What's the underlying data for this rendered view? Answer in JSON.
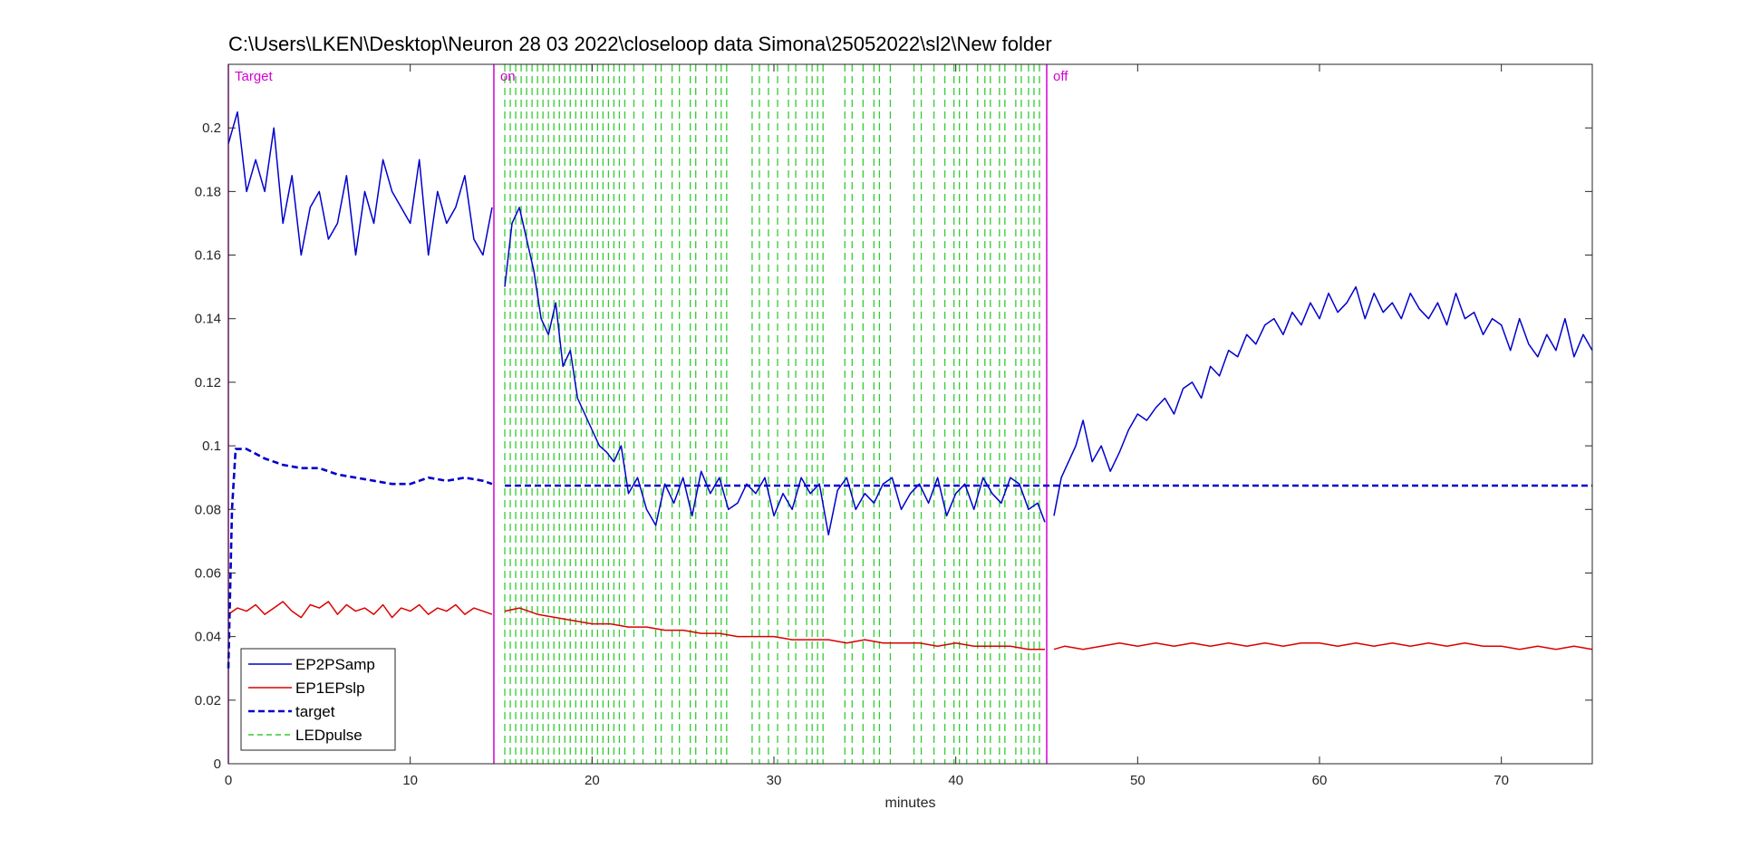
{
  "chart_data": {
    "type": "line",
    "title": "C:\\Users\\LKEN\\Desktop\\Neuron 28 03 2022\\closeloop data Simona\\25052022\\sl2\\New folder",
    "xlabel": "minutes",
    "ylabel": "",
    "xlim": [
      0,
      75
    ],
    "ylim": [
      0,
      0.22
    ],
    "xticks": [
      0,
      10,
      20,
      30,
      40,
      50,
      60,
      70
    ],
    "yticks": [
      0,
      0.02,
      0.04,
      0.06,
      0.08,
      0.1,
      0.12,
      0.14,
      0.16,
      0.18,
      0.2
    ],
    "xtick_labels": [
      "0",
      "10",
      "20",
      "30",
      "40",
      "50",
      "60",
      "70"
    ],
    "ytick_labels": [
      "0",
      "0.02",
      "0.04",
      "0.06",
      "0.08",
      "0.1",
      "0.12",
      "0.14",
      "0.16",
      "0.18",
      "0.2"
    ],
    "grid": false,
    "legend_position": "bottom-left",
    "regions": [
      {
        "label": "Target",
        "x": 0,
        "color": "#d400d4"
      },
      {
        "label": "on",
        "x": 14.6,
        "color": "#d400d4"
      },
      {
        "label": "off",
        "x": 45,
        "color": "#d400d4"
      }
    ],
    "series": [
      {
        "name": "EP2PSamp",
        "color": "#0000cc",
        "style": "solid",
        "segments": [
          {
            "x": [
              0,
              0.5,
              1,
              1.5,
              2,
              2.5,
              3,
              3.5,
              4,
              4.5,
              5,
              5.5,
              6,
              6.5,
              7,
              7.5,
              8,
              8.5,
              9,
              9.5,
              10,
              10.5,
              11,
              11.5,
              12,
              12.5,
              13,
              13.5,
              14,
              14.5
            ],
            "y": [
              0.195,
              0.205,
              0.18,
              0.19,
              0.18,
              0.2,
              0.17,
              0.185,
              0.16,
              0.175,
              0.18,
              0.165,
              0.17,
              0.185,
              0.16,
              0.18,
              0.17,
              0.19,
              0.18,
              0.175,
              0.17,
              0.19,
              0.16,
              0.18,
              0.17,
              0.175,
              0.185,
              0.165,
              0.16,
              0.175
            ]
          },
          {
            "x": [
              15.2,
              15.6,
              16,
              16.4,
              16.8,
              17.2,
              17.6,
              18,
              18.4,
              18.8,
              19.2,
              19.6,
              20,
              20.4,
              20.8,
              21.2,
              21.6,
              22,
              22.5,
              23,
              23.5,
              24,
              24.5,
              25,
              25.5,
              26,
              26.5,
              27,
              27.5,
              28,
              28.5,
              29,
              29.5,
              30,
              30.5,
              31,
              31.5,
              32,
              32.5,
              33,
              33.5,
              34,
              34.5,
              35,
              35.5,
              36,
              36.5,
              37,
              37.5,
              38,
              38.5,
              39,
              39.5,
              40,
              40.5,
              41,
              41.5,
              42,
              42.5,
              43,
              43.5,
              44,
              44.5,
              44.9
            ],
            "y": [
              0.15,
              0.17,
              0.175,
              0.165,
              0.155,
              0.14,
              0.135,
              0.145,
              0.125,
              0.13,
              0.115,
              0.11,
              0.105,
              0.1,
              0.098,
              0.095,
              0.1,
              0.085,
              0.09,
              0.08,
              0.075,
              0.088,
              0.082,
              0.09,
              0.078,
              0.092,
              0.085,
              0.09,
              0.08,
              0.082,
              0.088,
              0.085,
              0.09,
              0.078,
              0.085,
              0.08,
              0.09,
              0.085,
              0.088,
              0.072,
              0.086,
              0.09,
              0.08,
              0.085,
              0.082,
              0.088,
              0.09,
              0.08,
              0.085,
              0.088,
              0.082,
              0.09,
              0.078,
              0.085,
              0.088,
              0.08,
              0.09,
              0.085,
              0.082,
              0.09,
              0.088,
              0.08,
              0.082,
              0.076
            ]
          },
          {
            "x": [
              45.4,
              45.8,
              46.2,
              46.6,
              47,
              47.5,
              48,
              48.5,
              49,
              49.5,
              50,
              50.5,
              51,
              51.5,
              52,
              52.5,
              53,
              53.5,
              54,
              54.5,
              55,
              55.5,
              56,
              56.5,
              57,
              57.5,
              58,
              58.5,
              59,
              59.5,
              60,
              60.5,
              61,
              61.5,
              62,
              62.5,
              63,
              63.5,
              64,
              64.5,
              65,
              65.5,
              66,
              66.5,
              67,
              67.5,
              68,
              68.5,
              69,
              69.5,
              70,
              70.5,
              71,
              71.5,
              72,
              72.5,
              73,
              73.5,
              74,
              74.5,
              75
            ],
            "y": [
              0.078,
              0.09,
              0.095,
              0.1,
              0.108,
              0.095,
              0.1,
              0.092,
              0.098,
              0.105,
              0.11,
              0.108,
              0.112,
              0.115,
              0.11,
              0.118,
              0.12,
              0.115,
              0.125,
              0.122,
              0.13,
              0.128,
              0.135,
              0.132,
              0.138,
              0.14,
              0.135,
              0.142,
              0.138,
              0.145,
              0.14,
              0.148,
              0.142,
              0.145,
              0.15,
              0.14,
              0.148,
              0.142,
              0.145,
              0.14,
              0.148,
              0.143,
              0.14,
              0.145,
              0.138,
              0.148,
              0.14,
              0.142,
              0.135,
              0.14,
              0.138,
              0.13,
              0.14,
              0.132,
              0.128,
              0.135,
              0.13,
              0.14,
              0.128,
              0.135,
              0.13
            ]
          }
        ]
      },
      {
        "name": "EP1EPslp",
        "color": "#dd0000",
        "style": "solid",
        "segments": [
          {
            "x": [
              0,
              0.5,
              1,
              1.5,
              2,
              2.5,
              3,
              3.5,
              4,
              4.5,
              5,
              5.5,
              6,
              6.5,
              7,
              7.5,
              8,
              8.5,
              9,
              9.5,
              10,
              10.5,
              11,
              11.5,
              12,
              12.5,
              13,
              13.5,
              14,
              14.5
            ],
            "y": [
              0.047,
              0.049,
              0.048,
              0.05,
              0.047,
              0.049,
              0.051,
              0.048,
              0.046,
              0.05,
              0.049,
              0.051,
              0.047,
              0.05,
              0.048,
              0.049,
              0.047,
              0.05,
              0.046,
              0.049,
              0.048,
              0.05,
              0.047,
              0.049,
              0.048,
              0.05,
              0.047,
              0.049,
              0.048,
              0.047
            ]
          },
          {
            "x": [
              15.2,
              16,
              17,
              18,
              19,
              20,
              21,
              22,
              23,
              24,
              25,
              26,
              27,
              28,
              29,
              30,
              31,
              32,
              33,
              34,
              35,
              36,
              37,
              38,
              39,
              40,
              41,
              42,
              43,
              44,
              44.9
            ],
            "y": [
              0.048,
              0.049,
              0.047,
              0.046,
              0.045,
              0.044,
              0.044,
              0.043,
              0.043,
              0.042,
              0.042,
              0.041,
              0.041,
              0.04,
              0.04,
              0.04,
              0.039,
              0.039,
              0.039,
              0.038,
              0.039,
              0.038,
              0.038,
              0.038,
              0.037,
              0.038,
              0.037,
              0.037,
              0.037,
              0.036,
              0.036
            ]
          },
          {
            "x": [
              45.4,
              46,
              47,
              48,
              49,
              50,
              51,
              52,
              53,
              54,
              55,
              56,
              57,
              58,
              59,
              60,
              61,
              62,
              63,
              64,
              65,
              66,
              67,
              68,
              69,
              70,
              71,
              72,
              73,
              74,
              75
            ],
            "y": [
              0.036,
              0.037,
              0.036,
              0.037,
              0.038,
              0.037,
              0.038,
              0.037,
              0.038,
              0.037,
              0.038,
              0.037,
              0.038,
              0.037,
              0.038,
              0.038,
              0.037,
              0.038,
              0.037,
              0.038,
              0.037,
              0.038,
              0.037,
              0.038,
              0.037,
              0.037,
              0.036,
              0.037,
              0.036,
              0.037,
              0.036
            ]
          }
        ]
      },
      {
        "name": "target",
        "color": "#0000cc",
        "style": "dashed",
        "segments": [
          {
            "x": [
              0,
              0.2,
              0.4,
              1,
              2,
              3,
              4,
              5,
              6,
              7,
              8,
              9,
              10,
              11,
              12,
              13,
              14,
              14.5
            ],
            "y": [
              0.03,
              0.08,
              0.099,
              0.099,
              0.096,
              0.094,
              0.093,
              0.093,
              0.091,
              0.09,
              0.089,
              0.088,
              0.088,
              0.09,
              0.089,
              0.09,
              0.089,
              0.088
            ]
          },
          {
            "x": [
              15.2,
              75
            ],
            "y": [
              0.0875,
              0.0875
            ]
          }
        ]
      }
    ],
    "led_pulses": {
      "name": "LEDpulse",
      "color": "#33cc33",
      "style": "dashed",
      "x": [
        15.2,
        15.5,
        15.8,
        16.1,
        16.4,
        16.7,
        17,
        17.3,
        17.6,
        17.9,
        18.2,
        18.5,
        18.8,
        19.1,
        19.4,
        19.7,
        20,
        20.3,
        20.6,
        20.9,
        21.2,
        21.5,
        21.8,
        22.3,
        22.8,
        23.5,
        23.8,
        24.4,
        24.8,
        25.4,
        25.7,
        26.3,
        26.8,
        27.1,
        27.4,
        28.8,
        29.2,
        29.7,
        30.2,
        30.8,
        31.2,
        31.8,
        32.1,
        32.4,
        32.7,
        33.9,
        34.3,
        34.9,
        35.5,
        35.8,
        36.4,
        37.7,
        38.1,
        38.8,
        39.4,
        39.9,
        40.2,
        40.6,
        41.2,
        41.6,
        41.9,
        42.4,
        42.7,
        43.3,
        43.6,
        44,
        44.3,
        44.6
      ]
    },
    "legend": [
      {
        "label": "EP2PSamp",
        "color": "#0000cc",
        "style": "solid"
      },
      {
        "label": "EP1EPslp",
        "color": "#dd0000",
        "style": "solid"
      },
      {
        "label": "target",
        "color": "#0000cc",
        "style": "dashed"
      },
      {
        "label": "LEDpulse",
        "color": "#33cc33",
        "style": "dashed"
      }
    ]
  }
}
